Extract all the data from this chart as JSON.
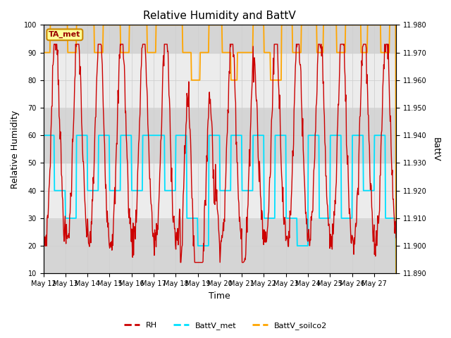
{
  "title": "Relative Humidity and BattV",
  "xlabel": "Time",
  "ylabel_left": "Relative Humidity",
  "ylabel_right": "BattV",
  "annotation": "TA_met",
  "ylim_left": [
    10,
    100
  ],
  "ylim_right": [
    11.89,
    11.98
  ],
  "x_labels": [
    "May 12",
    "May 13",
    "May 14",
    "May 15",
    "May 16",
    "May 17",
    "May 18",
    "May 19",
    "May 20",
    "May 21",
    "May 22",
    "May 23",
    "May 24",
    "May 25",
    "May 26",
    "May 27"
  ],
  "grid_color": "#d0d0d0",
  "bg_color": "#e8e8e8",
  "plot_bg": "#f5f5f5",
  "rh_color": "#cc0000",
  "battv_met_color": "#00e0ff",
  "battv_soilco2_color": "#ffa500",
  "band_colors": [
    "#d8d8d8",
    "#ebebeb",
    "#d8d8d8",
    "#ebebeb",
    "#d8d8d8",
    "#ebebeb",
    "#d8d8d8",
    "#ebebeb",
    "#d8d8d8"
  ],
  "right_ticks": [
    11.89,
    11.9,
    11.91,
    11.92,
    11.93,
    11.94,
    11.95,
    11.96,
    11.97,
    11.98
  ]
}
